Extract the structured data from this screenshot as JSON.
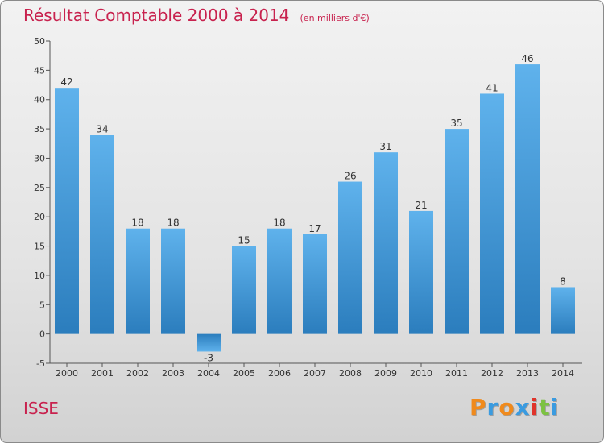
{
  "chart_data": {
    "type": "bar",
    "title": "Résultat Comptable 2000 à 2014",
    "subtitle": "(en milliers d'€)",
    "categories": [
      "2000",
      "2001",
      "2002",
      "2003",
      "2004",
      "2005",
      "2006",
      "2007",
      "2008",
      "2009",
      "2010",
      "2011",
      "2012",
      "2013",
      "2014"
    ],
    "values": [
      42,
      34,
      18,
      18,
      -3,
      15,
      18,
      17,
      26,
      31,
      21,
      35,
      41,
      46,
      8
    ],
    "ylim": [
      -5,
      50
    ],
    "yticks": [
      -5,
      0,
      5,
      10,
      15,
      20,
      25,
      30,
      35,
      40,
      45,
      50
    ],
    "grid": false,
    "bar_color": "#3a93d6"
  },
  "commune": "ISSE",
  "logo": {
    "text": "Proxiti",
    "letters": [
      "P",
      "r",
      "o",
      "x",
      "i",
      "t",
      "i"
    ],
    "colors": [
      "#f08a1c",
      "#3a9be0",
      "#f08a1c",
      "#3a9be0",
      "#e0342b",
      "#7cc242",
      "#3a9be0"
    ]
  }
}
